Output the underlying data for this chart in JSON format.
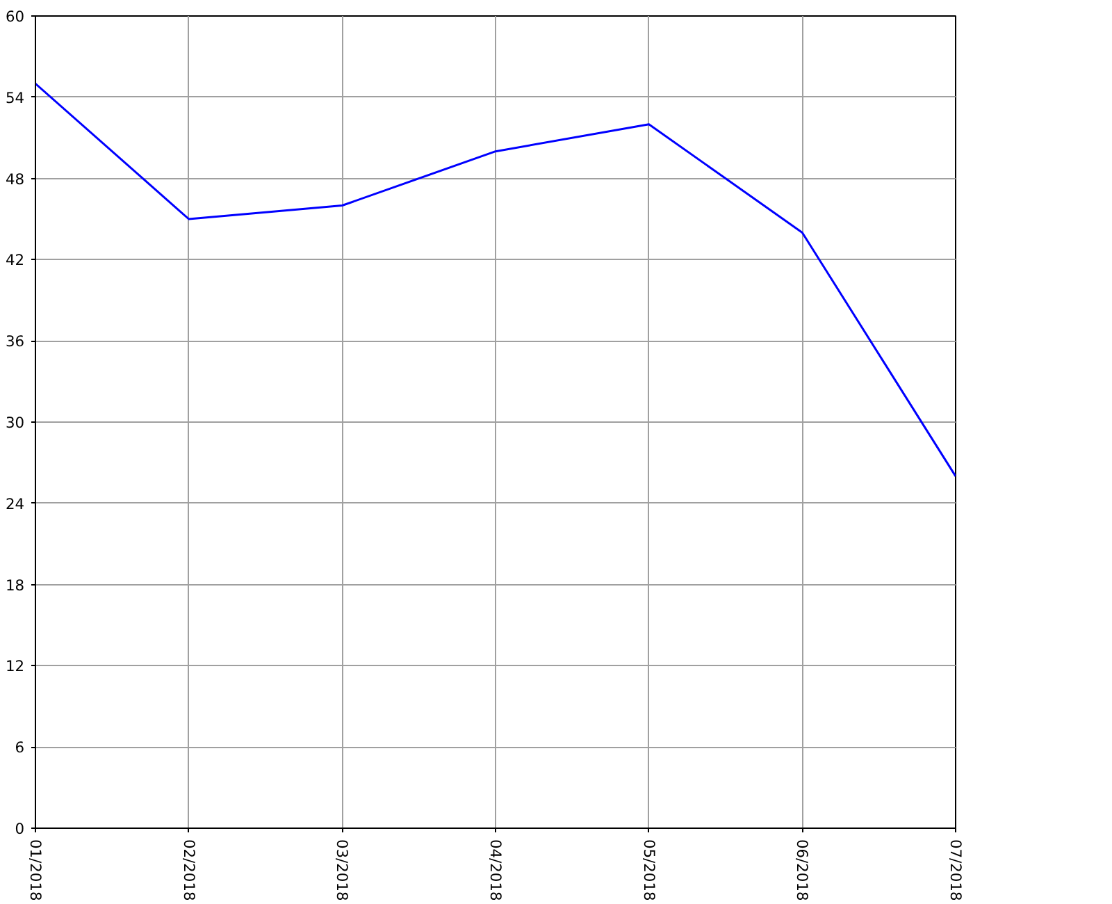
{
  "chart_data": {
    "type": "line",
    "categories": [
      "01/2018",
      "02/2018",
      "03/2018",
      "04/2018",
      "05/2018",
      "06/2018",
      "07/2018"
    ],
    "values": [
      55,
      45,
      46,
      50,
      52,
      44,
      26
    ],
    "color": "#0000ff",
    "ylim": [
      0,
      60
    ],
    "yticks": [
      0,
      6,
      12,
      18,
      24,
      30,
      36,
      42,
      48,
      54,
      60
    ],
    "grid": true
  }
}
